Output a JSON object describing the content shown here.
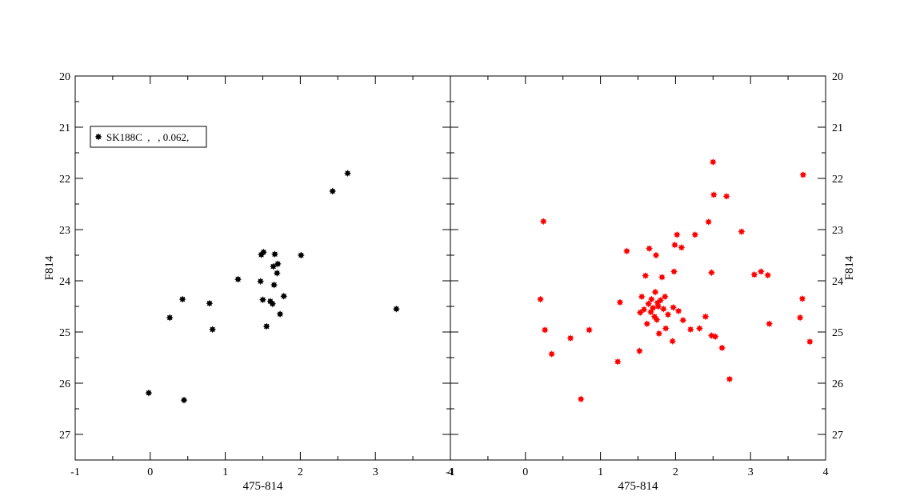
{
  "chart_data": [
    {
      "type": "scatter",
      "panel": "left",
      "xlabel": "475-814",
      "ylabel": "F814",
      "xlim": [
        -1,
        4
      ],
      "ylim": [
        27.5,
        20
      ],
      "y_inverted": true,
      "x_ticks": [
        "-1",
        "0",
        "1",
        "2",
        "3",
        "4"
      ],
      "y_ticks": [
        "20",
        "21",
        "22",
        "23",
        "24",
        "25",
        "26",
        "27"
      ],
      "legend": {
        "placement": "top-left",
        "entries": [
          "SK188C  ,   , 0.062,"
        ]
      },
      "grid": false,
      "series": [
        {
          "name": "SK188C  ,   , 0.062,",
          "color": "#000000",
          "marker": "star",
          "points": [
            [
              -0.02,
              26.19
            ],
            [
              0.26,
              24.72
            ],
            [
              0.43,
              24.36
            ],
            [
              0.45,
              26.33
            ],
            [
              0.79,
              24.44
            ],
            [
              0.83,
              24.95
            ],
            [
              1.17,
              23.97
            ],
            [
              1.47,
              24.01
            ],
            [
              1.48,
              23.49
            ],
            [
              1.51,
              23.44
            ],
            [
              1.5,
              24.37
            ],
            [
              1.55,
              24.89
            ],
            [
              1.6,
              24.4
            ],
            [
              1.63,
              24.45
            ],
            [
              1.64,
              23.72
            ],
            [
              1.65,
              24.08
            ],
            [
              1.66,
              23.48
            ],
            [
              1.69,
              23.85
            ],
            [
              1.7,
              23.67
            ],
            [
              1.73,
              24.65
            ],
            [
              1.78,
              24.3
            ],
            [
              2.01,
              23.5
            ],
            [
              2.43,
              22.25
            ],
            [
              2.63,
              21.9
            ],
            [
              3.28,
              24.55
            ]
          ]
        }
      ]
    },
    {
      "type": "scatter",
      "panel": "right",
      "xlabel": "475-814",
      "ylabel": "F814",
      "xlim": [
        -1,
        4
      ],
      "ylim": [
        27.5,
        20
      ],
      "y_inverted": true,
      "x_ticks": [
        "-1",
        "0",
        "1",
        "2",
        "3",
        "4"
      ],
      "y_ticks": [
        "20",
        "21",
        "22",
        "23",
        "24",
        "25",
        "26",
        "27"
      ],
      "grid": false,
      "series": [
        {
          "color": "#ff0000",
          "marker": "star",
          "points": [
            [
              0.2,
              24.36
            ],
            [
              0.24,
              22.84
            ],
            [
              0.26,
              24.96
            ],
            [
              0.35,
              25.43
            ],
            [
              0.6,
              25.12
            ],
            [
              0.74,
              26.31
            ],
            [
              0.85,
              24.96
            ],
            [
              1.23,
              25.58
            ],
            [
              1.26,
              24.42
            ],
            [
              1.35,
              23.42
            ],
            [
              1.52,
              25.37
            ],
            [
              1.53,
              24.62
            ],
            [
              1.55,
              24.31
            ],
            [
              1.58,
              24.56
            ],
            [
              1.6,
              23.9
            ],
            [
              1.62,
              24.84
            ],
            [
              1.64,
              24.45
            ],
            [
              1.65,
              23.37
            ],
            [
              1.67,
              24.61
            ],
            [
              1.68,
              24.36
            ],
            [
              1.7,
              24.53
            ],
            [
              1.72,
              24.7
            ],
            [
              1.73,
              24.22
            ],
            [
              1.74,
              23.5
            ],
            [
              1.75,
              24.76
            ],
            [
              1.76,
              24.43
            ],
            [
              1.77,
              24.5
            ],
            [
              1.78,
              25.03
            ],
            [
              1.8,
              24.38
            ],
            [
              1.82,
              23.93
            ],
            [
              1.84,
              24.55
            ],
            [
              1.86,
              24.31
            ],
            [
              1.87,
              24.93
            ],
            [
              1.9,
              24.66
            ],
            [
              1.96,
              25.18
            ],
            [
              1.97,
              24.52
            ],
            [
              1.98,
              23.82
            ],
            [
              1.99,
              23.3
            ],
            [
              2.02,
              23.1
            ],
            [
              2.04,
              24.59
            ],
            [
              2.08,
              23.35
            ],
            [
              2.1,
              24.77
            ],
            [
              2.2,
              24.95
            ],
            [
              2.26,
              23.1
            ],
            [
              2.32,
              24.93
            ],
            [
              2.4,
              24.7
            ],
            [
              2.44,
              22.85
            ],
            [
              2.48,
              25.07
            ],
            [
              2.48,
              23.84
            ],
            [
              2.5,
              21.68
            ],
            [
              2.51,
              22.32
            ],
            [
              2.53,
              25.09
            ],
            [
              2.62,
              25.31
            ],
            [
              2.68,
              22.35
            ],
            [
              2.72,
              25.92
            ],
            [
              2.88,
              23.04
            ],
            [
              3.05,
              23.88
            ],
            [
              3.14,
              23.82
            ],
            [
              3.23,
              23.89
            ],
            [
              3.25,
              24.84
            ],
            [
              3.66,
              24.72
            ],
            [
              3.69,
              24.35
            ],
            [
              3.7,
              21.93
            ],
            [
              3.79,
              25.19
            ]
          ]
        }
      ]
    }
  ]
}
